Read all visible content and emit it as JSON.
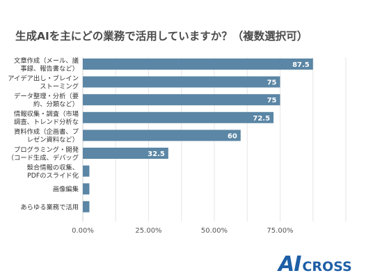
{
  "chart_data": {
    "type": "bar",
    "orientation": "horizontal",
    "title": "生成AIを主にどの業務で活用していますか？（複数選択可）",
    "categories": [
      [
        "文章作成（メール、議",
        "事録、報告書など）"
      ],
      [
        "アイデア出し・ブレイン",
        "ストーミング"
      ],
      [
        "データ整理・分析（要",
        "約、分類など）"
      ],
      [
        "情報収集・調査（市場",
        "調査、トレンド分析な"
      ],
      [
        "資料作成（企画書、プ",
        "レゼン資料など）"
      ],
      [
        "プログラミング・開発",
        "（コード生成、デバッグ"
      ],
      [
        "競合情報の収集、",
        "PDFのスライド化"
      ],
      [
        "画像編集"
      ],
      [
        "あらゆる業務で活用"
      ]
    ],
    "values": [
      87.5,
      75,
      75,
      72.5,
      60,
      32.5,
      2.5,
      2.5,
      2.5
    ],
    "value_labels": [
      "87.5",
      "75",
      "75",
      "72.5",
      "60",
      "32.5",
      "",
      "",
      ""
    ],
    "xlim": [
      0,
      100
    ],
    "x_ticks": [
      "0.00%",
      "25.00%",
      "50.00%",
      "75.00%"
    ],
    "x_tick_values": [
      0,
      25,
      50,
      75
    ],
    "grid": true,
    "bar_color": "#5b86a5",
    "label_color": "#ffffff",
    "xlabel": "",
    "ylabel": ""
  },
  "logo": {
    "mark": "AI",
    "text": "CROSS",
    "color": "#1e5fa6"
  }
}
